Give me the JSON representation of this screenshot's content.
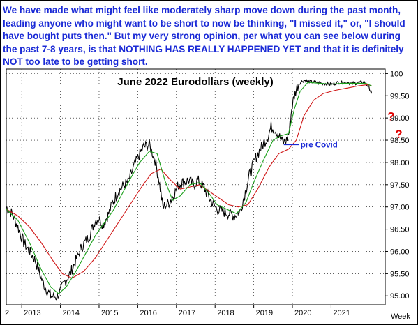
{
  "commentary": {
    "part1": "We have made what might feel like moderately sharp move down during the past month, leading anyone who might want to be short to now be thinking, \"I missed it,\" or, \"I should have bought puts then.\" But my very strong opinion, per what you can see below during the past 7-8 years, is that ",
    "emph1": "NOTHING HAS REALLY HAPPENED YET",
    "part2": " and that it is definitely ",
    "emph2": "NOT",
    "part3": " too late to be getting short."
  },
  "chart_data": {
    "type": "line",
    "title": "June 2022 Eurodollars (weekly)",
    "x_axis_label": "Week",
    "x_ticks": [
      "2",
      "2013",
      "2014",
      "2015",
      "2016",
      "2017",
      "2018",
      "2019",
      "2020",
      "2021"
    ],
    "xlim": [
      2012.6,
      2022.4
    ],
    "y_ticks": [
      "95.00",
      "95.50",
      "96.00",
      "96.50",
      "97.00",
      "97.50",
      "98.00",
      "98.50",
      "99.00",
      "99.50",
      "100"
    ],
    "ylim": [
      94.8,
      100.1
    ],
    "grid": true,
    "colors": {
      "price": "#000000",
      "short_ma": "#1aa01a",
      "long_ma": "#d01818",
      "annotation": "#1a2ad6",
      "question_marks": "#e00000"
    },
    "price_series": {
      "name": "",
      "x": [
        2012.6,
        2012.75,
        2012.9,
        2013.05,
        2013.2,
        2013.35,
        2013.5,
        2013.6,
        2013.75,
        2013.9,
        2014.0,
        2014.1,
        2014.25,
        2014.4,
        2014.55,
        2014.75,
        2014.9,
        2015.0,
        2015.1,
        2015.25,
        2015.35,
        2015.5,
        2015.65,
        2015.75,
        2015.9,
        2016.0,
        2016.15,
        2016.3,
        2016.45,
        2016.55,
        2016.65,
        2016.75,
        2016.85,
        2016.95,
        2017.05,
        2017.15,
        2017.3,
        2017.45,
        2017.55,
        2017.7,
        2017.85,
        2017.95,
        2018.05,
        2018.2,
        2018.35,
        2018.5,
        2018.65,
        2018.8,
        2018.9,
        2019.05,
        2019.2,
        2019.35,
        2019.45,
        2019.55,
        2019.65,
        2019.75,
        2019.85,
        2019.92,
        2019.98,
        2020.05,
        2020.12,
        2020.2,
        2020.3,
        2020.4,
        2020.6,
        2020.8,
        2021.0,
        2021.2,
        2021.4,
        2021.6,
        2021.8,
        2021.9,
        2022.0,
        2022.05
      ],
      "y": [
        97.0,
        96.85,
        96.55,
        96.2,
        96.0,
        95.8,
        95.4,
        95.2,
        95.0,
        94.98,
        95.1,
        95.3,
        95.5,
        95.8,
        96.1,
        96.35,
        96.7,
        96.75,
        96.6,
        96.85,
        97.1,
        97.35,
        97.5,
        97.55,
        97.9,
        98.1,
        98.35,
        98.4,
        98.05,
        97.6,
        97.0,
        97.05,
        97.15,
        97.3,
        97.5,
        97.55,
        97.6,
        97.5,
        97.6,
        97.45,
        97.2,
        97.05,
        96.95,
        96.9,
        96.85,
        96.8,
        96.9,
        97.4,
        97.75,
        98.1,
        98.35,
        98.55,
        98.8,
        98.75,
        98.6,
        98.45,
        98.5,
        98.7,
        99.2,
        99.5,
        99.7,
        99.8,
        99.85,
        99.82,
        99.8,
        99.78,
        99.75,
        99.8,
        99.8,
        99.78,
        99.8,
        99.78,
        99.65,
        99.55
      ]
    },
    "short_ma": {
      "name": "",
      "x": [
        2012.6,
        2012.9,
        2013.2,
        2013.5,
        2013.75,
        2013.95,
        2014.15,
        2014.4,
        2014.65,
        2014.9,
        2015.1,
        2015.35,
        2015.6,
        2015.85,
        2016.05,
        2016.3,
        2016.5,
        2016.7,
        2016.9,
        2017.1,
        2017.35,
        2017.6,
        2017.85,
        2018.05,
        2018.3,
        2018.55,
        2018.8,
        2019.0,
        2019.25,
        2019.5,
        2019.7,
        2019.9,
        2020.05,
        2020.2,
        2020.4,
        2020.7,
        2021.0,
        2021.3,
        2021.6,
        2021.9,
        2022.05
      ],
      "y": [
        96.95,
        96.7,
        96.2,
        95.6,
        95.2,
        95.05,
        95.2,
        95.55,
        95.95,
        96.35,
        96.6,
        96.9,
        97.3,
        97.7,
        98.0,
        98.25,
        98.2,
        97.6,
        97.15,
        97.25,
        97.5,
        97.55,
        97.3,
        97.05,
        96.95,
        96.85,
        97.1,
        97.55,
        98.05,
        98.5,
        98.6,
        98.65,
        99.2,
        99.6,
        99.8,
        99.78,
        99.76,
        99.78,
        99.78,
        99.78,
        99.72
      ]
    },
    "long_ma": {
      "name": "",
      "x": [
        2012.6,
        2012.9,
        2013.2,
        2013.5,
        2013.8,
        2014.05,
        2014.3,
        2014.6,
        2014.9,
        2015.2,
        2015.5,
        2015.8,
        2016.1,
        2016.35,
        2016.6,
        2016.85,
        2017.1,
        2017.35,
        2017.6,
        2017.85,
        2018.1,
        2018.35,
        2018.6,
        2018.85,
        2019.1,
        2019.4,
        2019.65,
        2019.9,
        2020.1,
        2020.3,
        2020.55,
        2020.8,
        2021.1,
        2021.4,
        2021.7,
        2021.95,
        2022.05
      ],
      "y": [
        96.95,
        96.8,
        96.55,
        96.2,
        95.8,
        95.5,
        95.4,
        95.55,
        95.85,
        96.25,
        96.65,
        97.05,
        97.45,
        97.75,
        97.85,
        97.6,
        97.4,
        97.45,
        97.5,
        97.35,
        97.2,
        97.05,
        97.0,
        97.05,
        97.4,
        97.9,
        98.2,
        98.3,
        98.5,
        99.05,
        99.4,
        99.55,
        99.62,
        99.67,
        99.72,
        99.75,
        99.72
      ]
    },
    "annotations": [
      {
        "text": "pre Covid",
        "x": 2019.85,
        "y": 98.4
      }
    ],
    "question_marks": [
      {
        "text": "?",
        "x": 2022.55,
        "y": 98.95
      },
      {
        "text": "?",
        "x": 2022.75,
        "y": 98.55
      }
    ]
  }
}
